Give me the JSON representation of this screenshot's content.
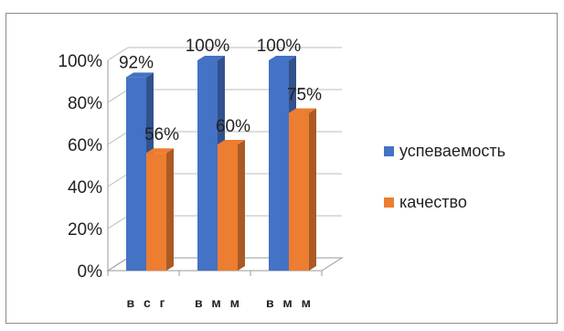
{
  "chart_data": {
    "type": "bar",
    "categories": [
      "в с г",
      "в м м",
      "в м м"
    ],
    "series": [
      {
        "name": "успеваемость",
        "values": [
          92,
          100,
          100
        ],
        "labels": [
          "92%",
          "100%",
          "100%"
        ],
        "color": "#4472c4"
      },
      {
        "name": "качество",
        "values": [
          56,
          60,
          75
        ],
        "labels": [
          "56%",
          "60%",
          "75%"
        ],
        "color": "#ed7d31"
      }
    ],
    "y_ticks": [
      "0%",
      "20%",
      "40%",
      "60%",
      "80%",
      "100%"
    ],
    "ylim": [
      0,
      100
    ],
    "grid": true,
    "legend_position": "right",
    "style": "3d-column"
  }
}
